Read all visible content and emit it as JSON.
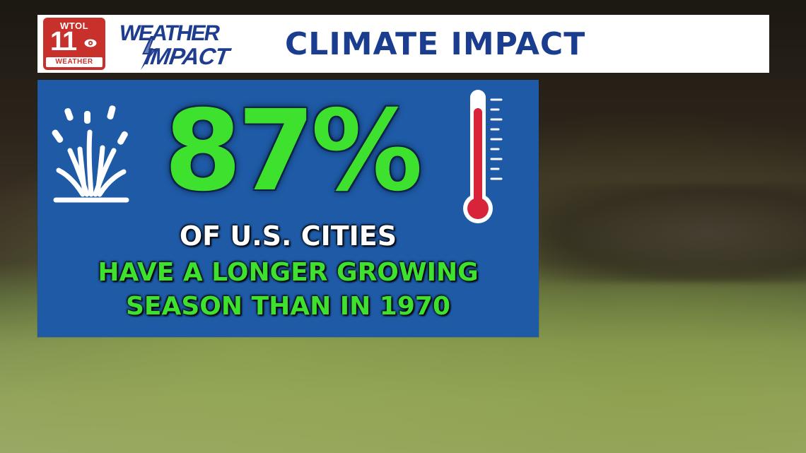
{
  "header": {
    "station_logo": {
      "call_letters": "WTOL",
      "channel": "11",
      "caption": "WEATHER",
      "brand_color": "#c8312b"
    },
    "segment_logo": {
      "line1": "WEATHER",
      "line2": "IMPACT",
      "color": "#1e3d8f"
    },
    "title": "CLIMATE IMPACT",
    "title_color": "#1a3d8f"
  },
  "panel": {
    "background_color": "#1e5aa6",
    "statistic": "87%",
    "statistic_color": "#3fe12f",
    "line1": "OF U.S. CITIES",
    "line2": "HAVE A LONGER GROWING",
    "line3": "SEASON THAN IN 1970",
    "left_icon": "sprinkler-icon",
    "right_icon": "thermometer-icon",
    "thermometer_fill_color": "#d8243a"
  }
}
